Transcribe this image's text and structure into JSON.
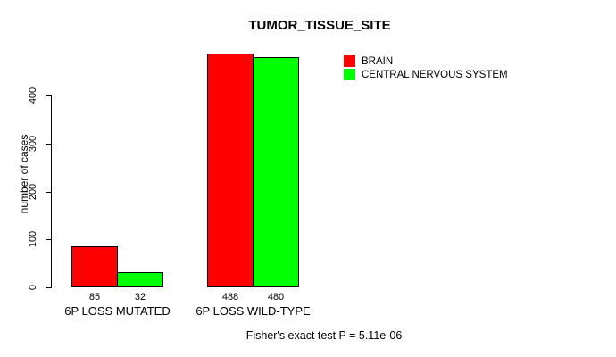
{
  "title": "TUMOR_TISSUE_SITE",
  "chart_data": {
    "type": "bar",
    "title": "TUMOR_TISSUE_SITE",
    "xlabel": "",
    "ylabel": "number of cases",
    "categories": [
      "6P LOSS MUTATED",
      "6P LOSS WILD-TYPE"
    ],
    "series": [
      {
        "name": "BRAIN",
        "color": "#ff0000",
        "values": [
          85,
          488
        ]
      },
      {
        "name": "CENTRAL NERVOUS SYSTEM",
        "color": "#00ff00",
        "values": [
          32,
          480
        ]
      }
    ],
    "yticks": [
      0,
      100,
      200,
      300,
      400
    ],
    "ylim": [
      0,
      500
    ],
    "grid": false,
    "value_labels_shown": true,
    "bar_outline_color": "#000000",
    "legend_position": "top-right",
    "annotation": "Fisher's exact test P = 5.11e-06"
  },
  "footer": {
    "text": "Fisher's exact test P = 5.11e-06"
  }
}
